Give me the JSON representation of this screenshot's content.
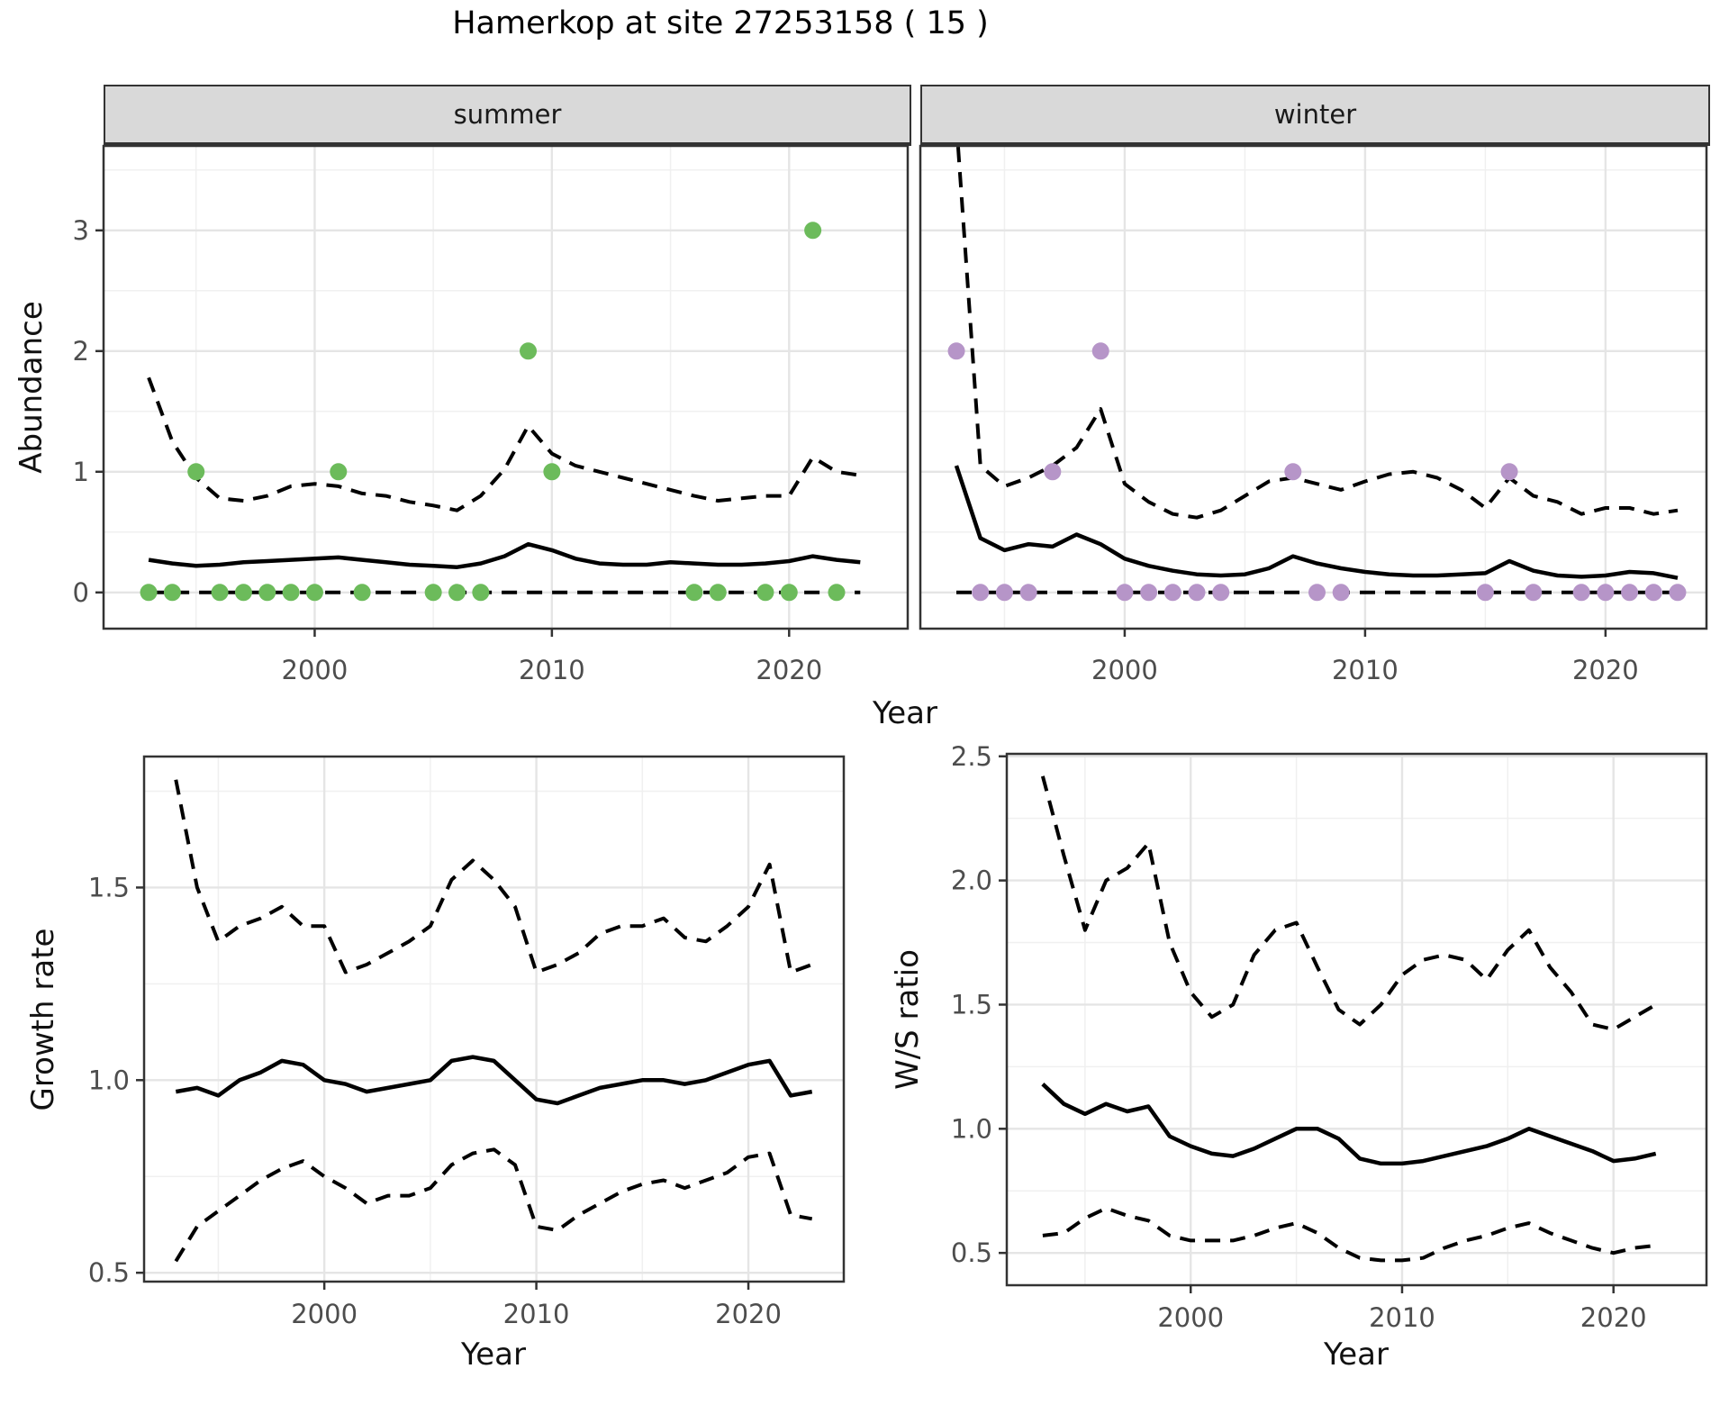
{
  "title": "Hamerkop at site 27253158 ( 15 )",
  "facets": {
    "summer_label": "summer",
    "winter_label": "winter"
  },
  "axes": {
    "abundance_label": "Abundance",
    "year_label_top": "Year",
    "year_label_growth": "Year",
    "year_label_ws": "Year",
    "growth_label": "Growth rate",
    "ws_label": "W/S ratio"
  },
  "colors": {
    "summer_dot": "#6cbb5b",
    "winter_dot": "#b695c8",
    "strip_bg": "#d9d9d9",
    "grid_major": "#e5e5e5",
    "grid_minor": "#f0f0f0",
    "line": "#000000",
    "panel_border": "#333333",
    "tick_text": "#4d4d4d"
  },
  "chart_data": [
    {
      "id": "abundance-summer",
      "type": "scatter",
      "title": "summer",
      "ylabel": "Abundance",
      "xlabel": "Year",
      "xlim": [
        1991.1,
        2025.0
      ],
      "ylim": [
        -0.3,
        3.7
      ],
      "x_ticks": [
        2000,
        2010,
        2020
      ],
      "x_tick_labels": [
        "2000",
        "2010",
        "2020"
      ],
      "x_minor": [
        1995,
        2005,
        2015
      ],
      "y_ticks": [
        0,
        1,
        2,
        3
      ],
      "y_tick_labels": [
        "0",
        "1",
        "2",
        "3"
      ],
      "y_minor": [
        0.5,
        1.5,
        2.5,
        3.5
      ],
      "dot_color": "#6cbb5b",
      "points": {
        "x": [
          1993,
          1994,
          1995,
          1996,
          1997,
          1998,
          1999,
          2000,
          2001,
          2002,
          2005,
          2006,
          2007,
          2009,
          2010,
          2016,
          2017,
          2019,
          2020,
          2021,
          2022
        ],
        "y": [
          0,
          0,
          1,
          0,
          0,
          0,
          0,
          0,
          1,
          0,
          0,
          0,
          0,
          2,
          1,
          0,
          0,
          0,
          0,
          3,
          0
        ]
      },
      "years": [
        1993,
        1994,
        1995,
        1996,
        1997,
        1998,
        1999,
        2000,
        2001,
        2002,
        2003,
        2004,
        2005,
        2006,
        2007,
        2008,
        2009,
        2010,
        2011,
        2012,
        2013,
        2014,
        2015,
        2016,
        2017,
        2018,
        2019,
        2020,
        2021,
        2022,
        2023
      ],
      "median": [
        0.27,
        0.24,
        0.22,
        0.23,
        0.25,
        0.26,
        0.27,
        0.28,
        0.29,
        0.27,
        0.25,
        0.23,
        0.22,
        0.21,
        0.24,
        0.3,
        0.4,
        0.35,
        0.28,
        0.24,
        0.23,
        0.23,
        0.25,
        0.24,
        0.23,
        0.23,
        0.24,
        0.26,
        0.3,
        0.27,
        0.25
      ],
      "upper": [
        1.78,
        1.25,
        0.95,
        0.78,
        0.76,
        0.8,
        0.88,
        0.9,
        0.88,
        0.82,
        0.8,
        0.75,
        0.72,
        0.68,
        0.8,
        1.02,
        1.38,
        1.15,
        1.05,
        1.0,
        0.95,
        0.9,
        0.85,
        0.8,
        0.76,
        0.78,
        0.8,
        0.8,
        1.12,
        1.0,
        0.97
      ],
      "lower": [
        0,
        0,
        0,
        0,
        0,
        0,
        0,
        0,
        0,
        0,
        0,
        0,
        0,
        0,
        0,
        0,
        0,
        0,
        0,
        0,
        0,
        0,
        0,
        0,
        0,
        0,
        0,
        0,
        0,
        0,
        0
      ]
    },
    {
      "id": "abundance-winter",
      "type": "scatter",
      "title": "winter",
      "ylabel": "Abundance",
      "xlabel": "Year",
      "xlim": [
        1991.5,
        2024.2
      ],
      "ylim": [
        -0.3,
        3.7
      ],
      "x_ticks": [
        2000,
        2010,
        2020
      ],
      "x_tick_labels": [
        "2000",
        "2010",
        "2020"
      ],
      "x_minor": [
        1995,
        2005,
        2015
      ],
      "y_ticks": [
        0,
        1,
        2,
        3
      ],
      "y_tick_labels": null,
      "y_minor": [
        0.5,
        1.5,
        2.5,
        3.5
      ],
      "dot_color": "#b695c8",
      "points": {
        "x": [
          1993,
          1994,
          1995,
          1996,
          1997,
          1999,
          2000,
          2001,
          2002,
          2003,
          2004,
          2007,
          2008,
          2009,
          2015,
          2016,
          2017,
          2019,
          2020,
          2021,
          2022,
          2023
        ],
        "y": [
          2,
          0,
          0,
          0,
          1,
          2,
          0,
          0,
          0,
          0,
          0,
          1,
          0,
          0,
          0,
          1,
          0,
          0,
          0,
          0,
          0,
          0
        ]
      },
      "years": [
        1993,
        1994,
        1995,
        1996,
        1997,
        1998,
        1999,
        2000,
        2001,
        2002,
        2003,
        2004,
        2005,
        2006,
        2007,
        2008,
        2009,
        2010,
        2011,
        2012,
        2013,
        2014,
        2015,
        2016,
        2017,
        2018,
        2019,
        2020,
        2021,
        2022,
        2023
      ],
      "median": [
        1.05,
        0.45,
        0.35,
        0.4,
        0.38,
        0.48,
        0.4,
        0.28,
        0.22,
        0.18,
        0.15,
        0.14,
        0.15,
        0.2,
        0.3,
        0.24,
        0.2,
        0.17,
        0.15,
        0.14,
        0.14,
        0.15,
        0.16,
        0.26,
        0.18,
        0.14,
        0.13,
        0.14,
        0.17,
        0.16,
        0.12
      ],
      "upper": [
        3.9,
        1.05,
        0.88,
        0.95,
        1.05,
        1.2,
        1.52,
        0.9,
        0.75,
        0.65,
        0.62,
        0.68,
        0.8,
        0.92,
        0.95,
        0.9,
        0.85,
        0.92,
        0.98,
        1.0,
        0.95,
        0.85,
        0.7,
        0.95,
        0.8,
        0.75,
        0.65,
        0.7,
        0.7,
        0.65,
        0.68
      ],
      "lower": [
        0,
        0,
        0,
        0,
        0,
        0,
        0,
        0,
        0,
        0,
        0,
        0,
        0,
        0,
        0,
        0,
        0,
        0,
        0,
        0,
        0,
        0,
        0,
        0,
        0,
        0,
        0,
        0,
        0,
        0,
        0
      ]
    },
    {
      "id": "growth-rate",
      "type": "line",
      "title": "",
      "ylabel": "Growth rate",
      "xlabel": "Year",
      "xlim": [
        1991.5,
        2024.5
      ],
      "ylim": [
        0.477,
        1.84
      ],
      "x_ticks": [
        2000,
        2010,
        2020
      ],
      "x_tick_labels": [
        "2000",
        "2010",
        "2020"
      ],
      "x_minor": [
        1995,
        2005,
        2015
      ],
      "y_ticks": [
        0.5,
        1.0,
        1.5
      ],
      "y_tick_labels": [
        "0.5",
        "1.0",
        "1.5"
      ],
      "y_minor": [
        0.75,
        1.25,
        1.75
      ],
      "dot_color": null,
      "points": {
        "x": [],
        "y": []
      },
      "years": [
        1993,
        1994,
        1995,
        1996,
        1997,
        1998,
        1999,
        2000,
        2001,
        2002,
        2003,
        2004,
        2005,
        2006,
        2007,
        2008,
        2009,
        2010,
        2011,
        2012,
        2013,
        2014,
        2015,
        2016,
        2017,
        2018,
        2019,
        2020,
        2021,
        2022,
        2023
      ],
      "median": [
        0.97,
        0.98,
        0.96,
        1.0,
        1.02,
        1.05,
        1.04,
        1.0,
        0.99,
        0.97,
        0.98,
        0.99,
        1.0,
        1.05,
        1.06,
        1.05,
        1.0,
        0.95,
        0.94,
        0.96,
        0.98,
        0.99,
        1.0,
        1.0,
        0.99,
        1.0,
        1.02,
        1.04,
        1.05,
        0.96,
        0.97
      ],
      "upper": [
        1.78,
        1.5,
        1.36,
        1.4,
        1.42,
        1.45,
        1.4,
        1.4,
        1.28,
        1.3,
        1.33,
        1.36,
        1.4,
        1.52,
        1.57,
        1.52,
        1.45,
        1.28,
        1.3,
        1.33,
        1.38,
        1.4,
        1.4,
        1.42,
        1.37,
        1.36,
        1.4,
        1.45,
        1.56,
        1.28,
        1.3
      ],
      "lower": [
        0.53,
        0.62,
        0.66,
        0.7,
        0.74,
        0.77,
        0.79,
        0.75,
        0.72,
        0.68,
        0.7,
        0.7,
        0.72,
        0.78,
        0.81,
        0.82,
        0.78,
        0.62,
        0.61,
        0.65,
        0.68,
        0.71,
        0.73,
        0.74,
        0.72,
        0.74,
        0.76,
        0.8,
        0.81,
        0.65,
        0.64
      ]
    },
    {
      "id": "ws-ratio",
      "type": "line",
      "title": "",
      "ylabel": "W/S ratio",
      "xlabel": "Year",
      "xlim": [
        1991.3,
        2024.4
      ],
      "ylim": [
        0.37,
        2.51
      ],
      "x_ticks": [
        2000,
        2010,
        2020
      ],
      "x_tick_labels": [
        "2000",
        "2010",
        "2020"
      ],
      "x_minor": [
        1995,
        2005,
        2015
      ],
      "y_ticks": [
        0.5,
        1.0,
        1.5,
        2.0,
        2.5
      ],
      "y_tick_labels": [
        "0.5",
        "1.0",
        "1.5",
        "2.0",
        "2.5"
      ],
      "y_minor": [
        0.75,
        1.25,
        1.75,
        2.25
      ],
      "dot_color": null,
      "points": {
        "x": [],
        "y": []
      },
      "years": [
        1993,
        1994,
        1995,
        1996,
        1997,
        1998,
        1999,
        2000,
        2001,
        2002,
        2003,
        2004,
        2005,
        2006,
        2007,
        2008,
        2009,
        2010,
        2011,
        2012,
        2013,
        2014,
        2015,
        2016,
        2017,
        2018,
        2019,
        2020,
        2021,
        2022
      ],
      "median": [
        1.18,
        1.1,
        1.06,
        1.1,
        1.07,
        1.09,
        0.97,
        0.93,
        0.9,
        0.89,
        0.92,
        0.96,
        1.0,
        1.0,
        0.96,
        0.88,
        0.86,
        0.86,
        0.87,
        0.89,
        0.91,
        0.93,
        0.96,
        1.0,
        0.97,
        0.94,
        0.91,
        0.87,
        0.88,
        0.9
      ],
      "upper": [
        2.42,
        2.1,
        1.8,
        2.0,
        2.05,
        2.15,
        1.75,
        1.55,
        1.45,
        1.5,
        1.7,
        1.8,
        1.83,
        1.65,
        1.48,
        1.42,
        1.5,
        1.62,
        1.68,
        1.7,
        1.68,
        1.6,
        1.72,
        1.8,
        1.65,
        1.55,
        1.42,
        1.4,
        1.45,
        1.5
      ],
      "lower": [
        0.57,
        0.58,
        0.64,
        0.68,
        0.65,
        0.63,
        0.57,
        0.55,
        0.55,
        0.55,
        0.57,
        0.6,
        0.62,
        0.58,
        0.52,
        0.48,
        0.47,
        0.47,
        0.48,
        0.52,
        0.55,
        0.57,
        0.6,
        0.62,
        0.58,
        0.55,
        0.52,
        0.5,
        0.52,
        0.53
      ]
    }
  ]
}
